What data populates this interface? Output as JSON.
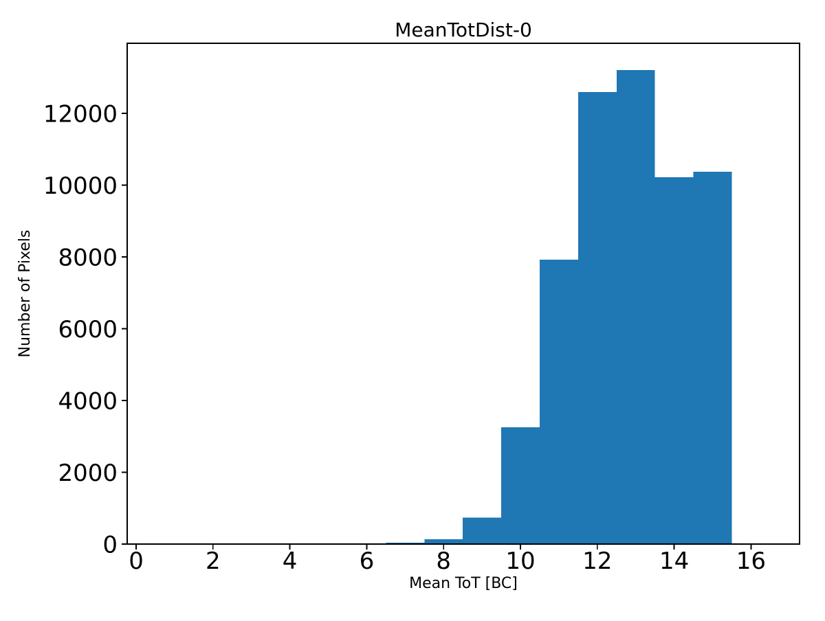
{
  "figure": {
    "background": "#ffffff"
  },
  "chart_data": {
    "type": "bar",
    "title": "MeanTotDist-0",
    "xlabel": "Mean ToT [BC]",
    "ylabel": "Number of Pixels",
    "bin_edges": [
      6.5,
      7.5,
      8.5,
      9.5,
      10.5,
      11.5,
      12.5,
      13.5,
      14.5,
      15.5
    ],
    "counts": [
      40,
      130,
      740,
      3250,
      7920,
      12590,
      13200,
      10220,
      10370
    ],
    "xticks": [
      0,
      2,
      4,
      6,
      8,
      10,
      12,
      14,
      16
    ],
    "yticks": [
      0,
      2000,
      4000,
      6000,
      8000,
      10000,
      12000
    ],
    "xlim": [
      -0.233,
      17.263
    ],
    "ylim": [
      0,
      13950
    ],
    "bar_color": "#1f77b4",
    "spine_color": "#000000",
    "text_color": "#000000",
    "grid": false,
    "legend": null
  }
}
